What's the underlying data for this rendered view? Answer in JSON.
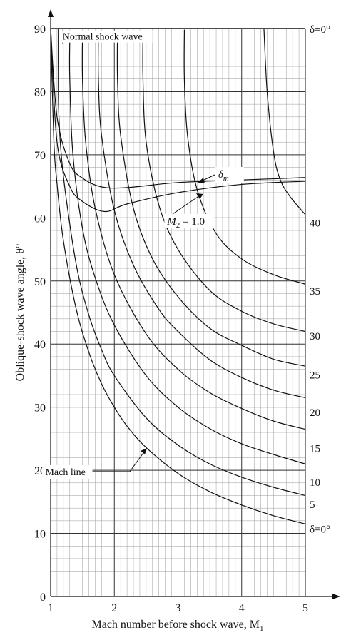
{
  "chart_data": {
    "type": "line",
    "title": "",
    "xlabel": "Mach number before shock wave, M",
    "xlabel_subscript": "1",
    "ylabel": "Oblique-shock wave angle, θ°",
    "xlim": [
      1,
      5
    ],
    "ylim": [
      0,
      90
    ],
    "x_ticks": [
      {
        "value": 1,
        "label": "1"
      },
      {
        "value": 2,
        "label": "2"
      },
      {
        "value": 3,
        "label": "3"
      },
      {
        "value": 4,
        "label": "4"
      },
      {
        "value": 5,
        "label": "5"
      }
    ],
    "y_ticks": [
      {
        "value": 0,
        "label": "0"
      },
      {
        "value": 10,
        "label": "10"
      },
      {
        "value": 20,
        "label": "20"
      },
      {
        "value": 30,
        "label": "30"
      },
      {
        "value": 40,
        "label": "40"
      },
      {
        "value": 50,
        "label": "50"
      },
      {
        "value": 60,
        "label": "60"
      },
      {
        "value": 70,
        "label": "70"
      },
      {
        "value": 80,
        "label": "80"
      },
      {
        "value": 90,
        "label": "90"
      }
    ],
    "grid": {
      "minor_x_step": 0.1,
      "minor_y_step": 2,
      "major_x_step": 1,
      "major_y_step": 10
    },
    "series": [
      {
        "name": "δ=0°",
        "points": [
          [
            1.0,
            90
          ],
          [
            1.05,
            72.2
          ],
          [
            1.1,
            65.4
          ],
          [
            1.2,
            56.4
          ],
          [
            1.4,
            45.6
          ],
          [
            1.6,
            38.7
          ],
          [
            1.8,
            33.7
          ],
          [
            2.0,
            30.0
          ],
          [
            2.2,
            27.0
          ],
          [
            2.5,
            23.6
          ],
          [
            3.0,
            19.5
          ],
          [
            3.5,
            16.6
          ],
          [
            4.0,
            14.5
          ],
          [
            4.5,
            12.8
          ],
          [
            5.0,
            11.5
          ]
        ]
      },
      {
        "name": "5",
        "points": [
          [
            1.12,
            90
          ],
          [
            1.12,
            84
          ],
          [
            1.13,
            76
          ],
          [
            1.2,
            66.6
          ],
          [
            1.4,
            52.7
          ],
          [
            1.6,
            44.6
          ],
          [
            1.8,
            39.1
          ],
          [
            2.0,
            35.0
          ],
          [
            2.5,
            28.3
          ],
          [
            3.0,
            24.0
          ],
          [
            3.5,
            21.0
          ],
          [
            4.0,
            18.9
          ],
          [
            4.5,
            17.3
          ],
          [
            5.0,
            16.0
          ]
        ]
      },
      {
        "name": "10",
        "points": [
          [
            1.3,
            88
          ],
          [
            1.3,
            82
          ],
          [
            1.35,
            70
          ],
          [
            1.5,
            58.3
          ],
          [
            1.7,
            50.5
          ],
          [
            2.0,
            43.0
          ],
          [
            2.5,
            35.0
          ],
          [
            3.0,
            30.0
          ],
          [
            3.5,
            26.6
          ],
          [
            4.0,
            24.2
          ],
          [
            4.5,
            22.5
          ],
          [
            5.0,
            21.0
          ]
        ]
      },
      {
        "name": "15",
        "points": [
          [
            1.5,
            89
          ],
          [
            1.5,
            82
          ],
          [
            1.55,
            72
          ],
          [
            1.7,
            61.5
          ],
          [
            2.0,
            51.0
          ],
          [
            2.5,
            41.6
          ],
          [
            3.0,
            36.0
          ],
          [
            3.5,
            32.3
          ],
          [
            4.0,
            29.8
          ],
          [
            4.5,
            27.8
          ],
          [
            5.0,
            26.5
          ]
        ]
      },
      {
        "name": "20",
        "points": [
          [
            1.75,
            89.3
          ],
          [
            1.75,
            82
          ],
          [
            1.8,
            73
          ],
          [
            2.0,
            61.2
          ],
          [
            2.3,
            52.5
          ],
          [
            2.7,
            45.5
          ],
          [
            3.0,
            42.0
          ],
          [
            3.5,
            37.5
          ],
          [
            4.0,
            34.7
          ],
          [
            4.5,
            32.7
          ],
          [
            5.0,
            31.5
          ]
        ]
      },
      {
        "name": "25",
        "points": [
          [
            2.05,
            89.5
          ],
          [
            2.05,
            82
          ],
          [
            2.1,
            73
          ],
          [
            2.3,
            61.5
          ],
          [
            2.6,
            53.5
          ],
          [
            3.0,
            47.5
          ],
          [
            3.5,
            42.5
          ],
          [
            4.0,
            39.8
          ],
          [
            4.5,
            37.6
          ],
          [
            5.0,
            36.5
          ]
        ]
      },
      {
        "name": "30",
        "points": [
          [
            2.45,
            89.7
          ],
          [
            2.45,
            82
          ],
          [
            2.5,
            72
          ],
          [
            2.7,
            62
          ],
          [
            3.0,
            55
          ],
          [
            3.5,
            48.5
          ],
          [
            4.0,
            45.2
          ],
          [
            4.5,
            43.2
          ],
          [
            5.0,
            42.0
          ]
        ]
      },
      {
        "name": "35",
        "points": [
          [
            3.1,
            89.8
          ],
          [
            3.1,
            82
          ],
          [
            3.15,
            73
          ],
          [
            3.3,
            64.5
          ],
          [
            3.6,
            57.5
          ],
          [
            4.0,
            53.5
          ],
          [
            4.5,
            51.0
          ],
          [
            5.0,
            49.5
          ]
        ]
      },
      {
        "name": "40",
        "points": [
          [
            4.35,
            89.9
          ],
          [
            4.4,
            80
          ],
          [
            4.5,
            70.5
          ],
          [
            4.6,
            66.2
          ],
          [
            4.75,
            63.5
          ],
          [
            5.0,
            60.5
          ]
        ]
      },
      {
        "name": "Normal shock wave",
        "points": [
          [
            1.0,
            90
          ],
          [
            5.0,
            90
          ]
        ]
      },
      {
        "name": "δm",
        "points": [
          [
            1.0,
            90
          ],
          [
            1.1,
            76
          ],
          [
            1.3,
            68.6
          ],
          [
            1.5,
            66.3
          ],
          [
            1.8,
            64.9
          ],
          [
            2.2,
            64.8
          ],
          [
            3.0,
            65.6
          ],
          [
            4.0,
            66.0
          ],
          [
            5.0,
            66.4
          ]
        ]
      },
      {
        "name": "M₂=1.0",
        "points": [
          [
            1.0,
            90
          ],
          [
            1.1,
            72
          ],
          [
            1.3,
            65.0
          ],
          [
            1.5,
            62.6
          ],
          [
            1.85,
            61.0
          ],
          [
            2.2,
            62.2
          ],
          [
            3.0,
            64.0
          ],
          [
            4.0,
            65.3
          ],
          [
            5.0,
            65.8
          ]
        ]
      }
    ],
    "right_labels": [
      {
        "text": "δ=0°",
        "y": 90
      },
      {
        "text": "40",
        "y": 59.3
      },
      {
        "text": "35",
        "y": 48.5
      },
      {
        "text": "30",
        "y": 41.4
      },
      {
        "text": "25",
        "y": 35.2
      },
      {
        "text": "20",
        "y": 29.3
      },
      {
        "text": "15",
        "y": 23.6
      },
      {
        "text": "10",
        "y": 18.2
      },
      {
        "text": "5",
        "y": 14.7
      },
      {
        "text": "δ=0°",
        "y": 10.8
      }
    ],
    "annotations": [
      {
        "text": "Normal shock wave",
        "at": [
          1.3,
          88.8
        ]
      },
      {
        "text": "δ",
        "subscript": "m",
        "at": [
          3.8,
          67.5
        ]
      },
      {
        "text": "M",
        "subscript": "2",
        "suffix": " = 1.0",
        "at": [
          3.95,
          59.5
        ]
      },
      {
        "text": "Mach line",
        "at": [
          1.7,
          19.8
        ]
      }
    ]
  }
}
